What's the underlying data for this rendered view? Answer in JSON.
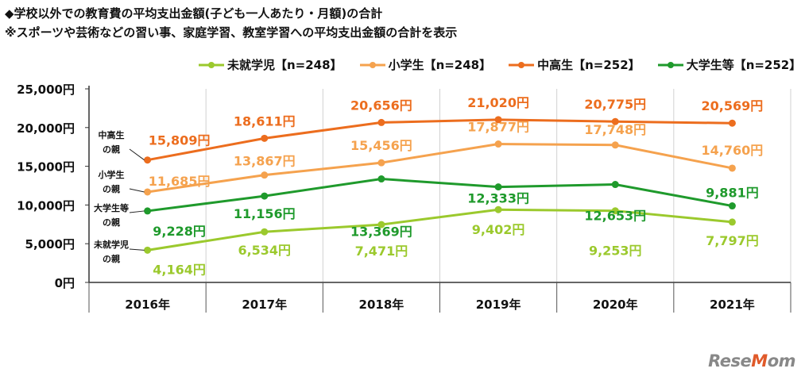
{
  "title": "◆学校以外での教育費の平均支出金額(子ども一人あたり・月額)の合計",
  "subtitle": "※スポーツや芸術などの習い事、家庭学習、教室学習への平均支出金額の合計を表示",
  "logo": "ReseMom",
  "chart_data": {
    "type": "line",
    "categories": [
      "2016年",
      "2017年",
      "2018年",
      "2019年",
      "2020年",
      "2021年"
    ],
    "ylim": [
      0,
      25000
    ],
    "yticks": [
      "0円",
      "5,000円",
      "10,000円",
      "15,000円",
      "20,000円",
      "25,000円"
    ],
    "ytick_values": [
      0,
      5000,
      10000,
      15000,
      20000,
      25000
    ],
    "grid": "vertical",
    "legend_position": "top-right",
    "series": [
      {
        "name": "未就学児【n=248】",
        "color": "#9bc92d",
        "values": [
          4164,
          6534,
          7471,
          9402,
          9253,
          7797
        ],
        "labels": [
          "4,164円",
          "6,534円",
          "7,471円",
          "9,402円",
          "9,253円",
          "7,797円"
        ],
        "side_label": [
          "未就学児",
          "の親"
        ]
      },
      {
        "name": "小学生【n=248】",
        "color": "#f5a24e",
        "values": [
          11685,
          13867,
          15456,
          17877,
          17748,
          14760
        ],
        "labels": [
          "11,685円",
          "13,867円",
          "15,456円",
          "17,877円",
          "17,748円",
          "14,760円"
        ],
        "side_label": [
          "小学生",
          "の親"
        ]
      },
      {
        "name": "中高生【n=252】",
        "color": "#ec6d1e",
        "values": [
          15809,
          18611,
          20656,
          21020,
          20775,
          20569
        ],
        "labels": [
          "15,809円",
          "18,611円",
          "20,656円",
          "21,020円",
          "20,775円",
          "20,569円"
        ],
        "side_label": [
          "中高生",
          "の親"
        ]
      },
      {
        "name": "大学生等【n=252】",
        "color": "#1f9a2c",
        "values": [
          9228,
          11156,
          13369,
          12333,
          12653,
          9881
        ],
        "labels": [
          "9,228円",
          "11,156円",
          "13,369円",
          "12,333円",
          "12,653円",
          "9,881円"
        ],
        "side_label": [
          "大学生等",
          "の親"
        ]
      }
    ]
  }
}
